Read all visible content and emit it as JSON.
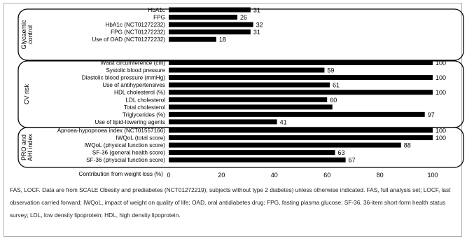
{
  "chart_data": {
    "type": "bar",
    "orientation": "horizontal",
    "xlabel": "Contribution from weight loss (%)",
    "xlim": [
      0,
      100
    ],
    "xticks": [
      0,
      20,
      40,
      60,
      80,
      100
    ],
    "bar_color": "#000000",
    "groups": [
      {
        "name": "Glycaemic control",
        "items": [
          {
            "label": "HbA1c",
            "value": 31
          },
          {
            "label": "FPG",
            "value": 26
          },
          {
            "label": "HbA1c (NCT01272232)",
            "value": 32
          },
          {
            "label": "FPG (NCT01272232)",
            "value": 31
          },
          {
            "label": "Use of OAD (NCT01272232)",
            "value": 18
          }
        ]
      },
      {
        "name": "CV risk",
        "items": [
          {
            "label": "Waist circumference (cm)",
            "value": 100
          },
          {
            "label": "Systolic blood pressure",
            "value": 59
          },
          {
            "label": "Diastolic blood pressure (mmHg)",
            "value": 100
          },
          {
            "label": "Use of antihypertensives",
            "value": 61
          },
          {
            "label": "HDL cholesterol (%)",
            "value": 100
          },
          {
            "label": "LDL cholesterol",
            "value": 60
          },
          {
            "label": "Total cholesterol",
            "value": 62
          },
          {
            "label": "Triglycerides (%)",
            "value": 97
          },
          {
            "label": "Use of lipid-lowering agents",
            "value": 41
          }
        ]
      },
      {
        "name": "PRO and AHI index",
        "items": [
          {
            "label": "Apnoea-hypopnoea index (NCT01557166)",
            "value": 100
          },
          {
            "label": "IWQoL (total score)",
            "value": 100
          },
          {
            "label": "IWQoL (physical function score)",
            "value": 88
          },
          {
            "label": "SF-36 (general health score)",
            "value": 63
          },
          {
            "label": "SF-36 (physcial function score)",
            "value": 67
          }
        ]
      }
    ],
    "value_labels": [
      "31",
      "26",
      "32",
      "31",
      "18",
      "100",
      "59",
      "100",
      "61",
      "100",
      "60",
      "",
      "97",
      "41",
      "100",
      "100",
      "88",
      "63",
      "67"
    ]
  },
  "footnote": "FAS, LOCF. Data are from SCALE Obesity and prediabetes (NCT01272219); subjects without type 2 diabetes) unless otherwise indicated. FAS, full analysis set; LOCF, last observation carried forward; IWQoL, impact of weight on quality of life; OAD, oral antidiabetes drug; FPG, fasting plasma glucose; SF-36, 36-item short-form health status survey; LDL, low density lipoprotein; HDL, high density lipoprotein."
}
